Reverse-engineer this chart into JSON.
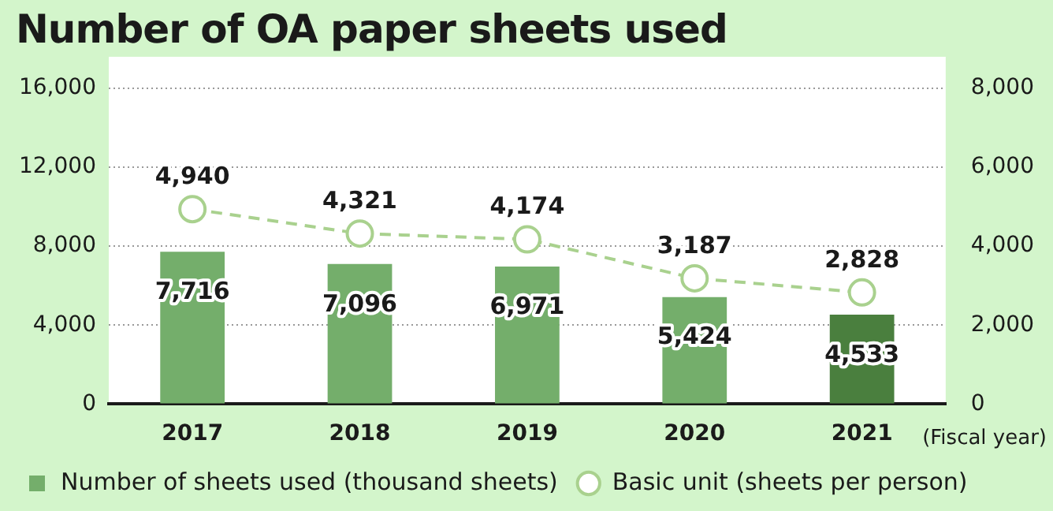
{
  "chart_data": {
    "type": "bar",
    "title": "Number of OA paper sheets used",
    "xlabel": "(Fiscal year)",
    "categories": [
      "2017",
      "2018",
      "2019",
      "2020",
      "2021"
    ],
    "series": [
      {
        "name": "Number of sheets used (thousand sheets)",
        "colors": [
          "#74ae6b",
          "#74ae6b",
          "#74ae6b",
          "#74ae6b",
          "#4a7f3e"
        ],
        "values": [
          7716,
          7096,
          6971,
          5424,
          4533
        ],
        "value_labels": [
          "7,716",
          "7,096",
          "6,971",
          "5,424",
          "4,533"
        ]
      },
      {
        "name": "Basic unit (sheets per person)",
        "type": "line",
        "axis": "y2",
        "color": "#a9d18e",
        "marker": "circle",
        "line_style": "dashed",
        "values": [
          4940,
          4321,
          4174,
          3187,
          2828
        ],
        "value_labels": [
          "4,940",
          "4,321",
          "4,174",
          "3,187",
          "2,828"
        ]
      }
    ],
    "ylim": [
      0,
      16000
    ],
    "yticks": [
      {
        "value": 0,
        "label": "0"
      },
      {
        "value": 4000,
        "label": "4,000"
      },
      {
        "value": 8000,
        "label": "8,000"
      },
      {
        "value": 12000,
        "label": "12,000"
      },
      {
        "value": 16000,
        "label": "16,000"
      }
    ],
    "y2lim": [
      0,
      8000
    ],
    "y2ticks": [
      {
        "value": 0,
        "label": "0"
      },
      {
        "value": 2000,
        "label": "2,000"
      },
      {
        "value": 4000,
        "label": "4,000"
      },
      {
        "value": 6000,
        "label": "6,000"
      },
      {
        "value": 8000,
        "label": "8,000"
      }
    ],
    "grid": "y",
    "legend": "bottom"
  }
}
